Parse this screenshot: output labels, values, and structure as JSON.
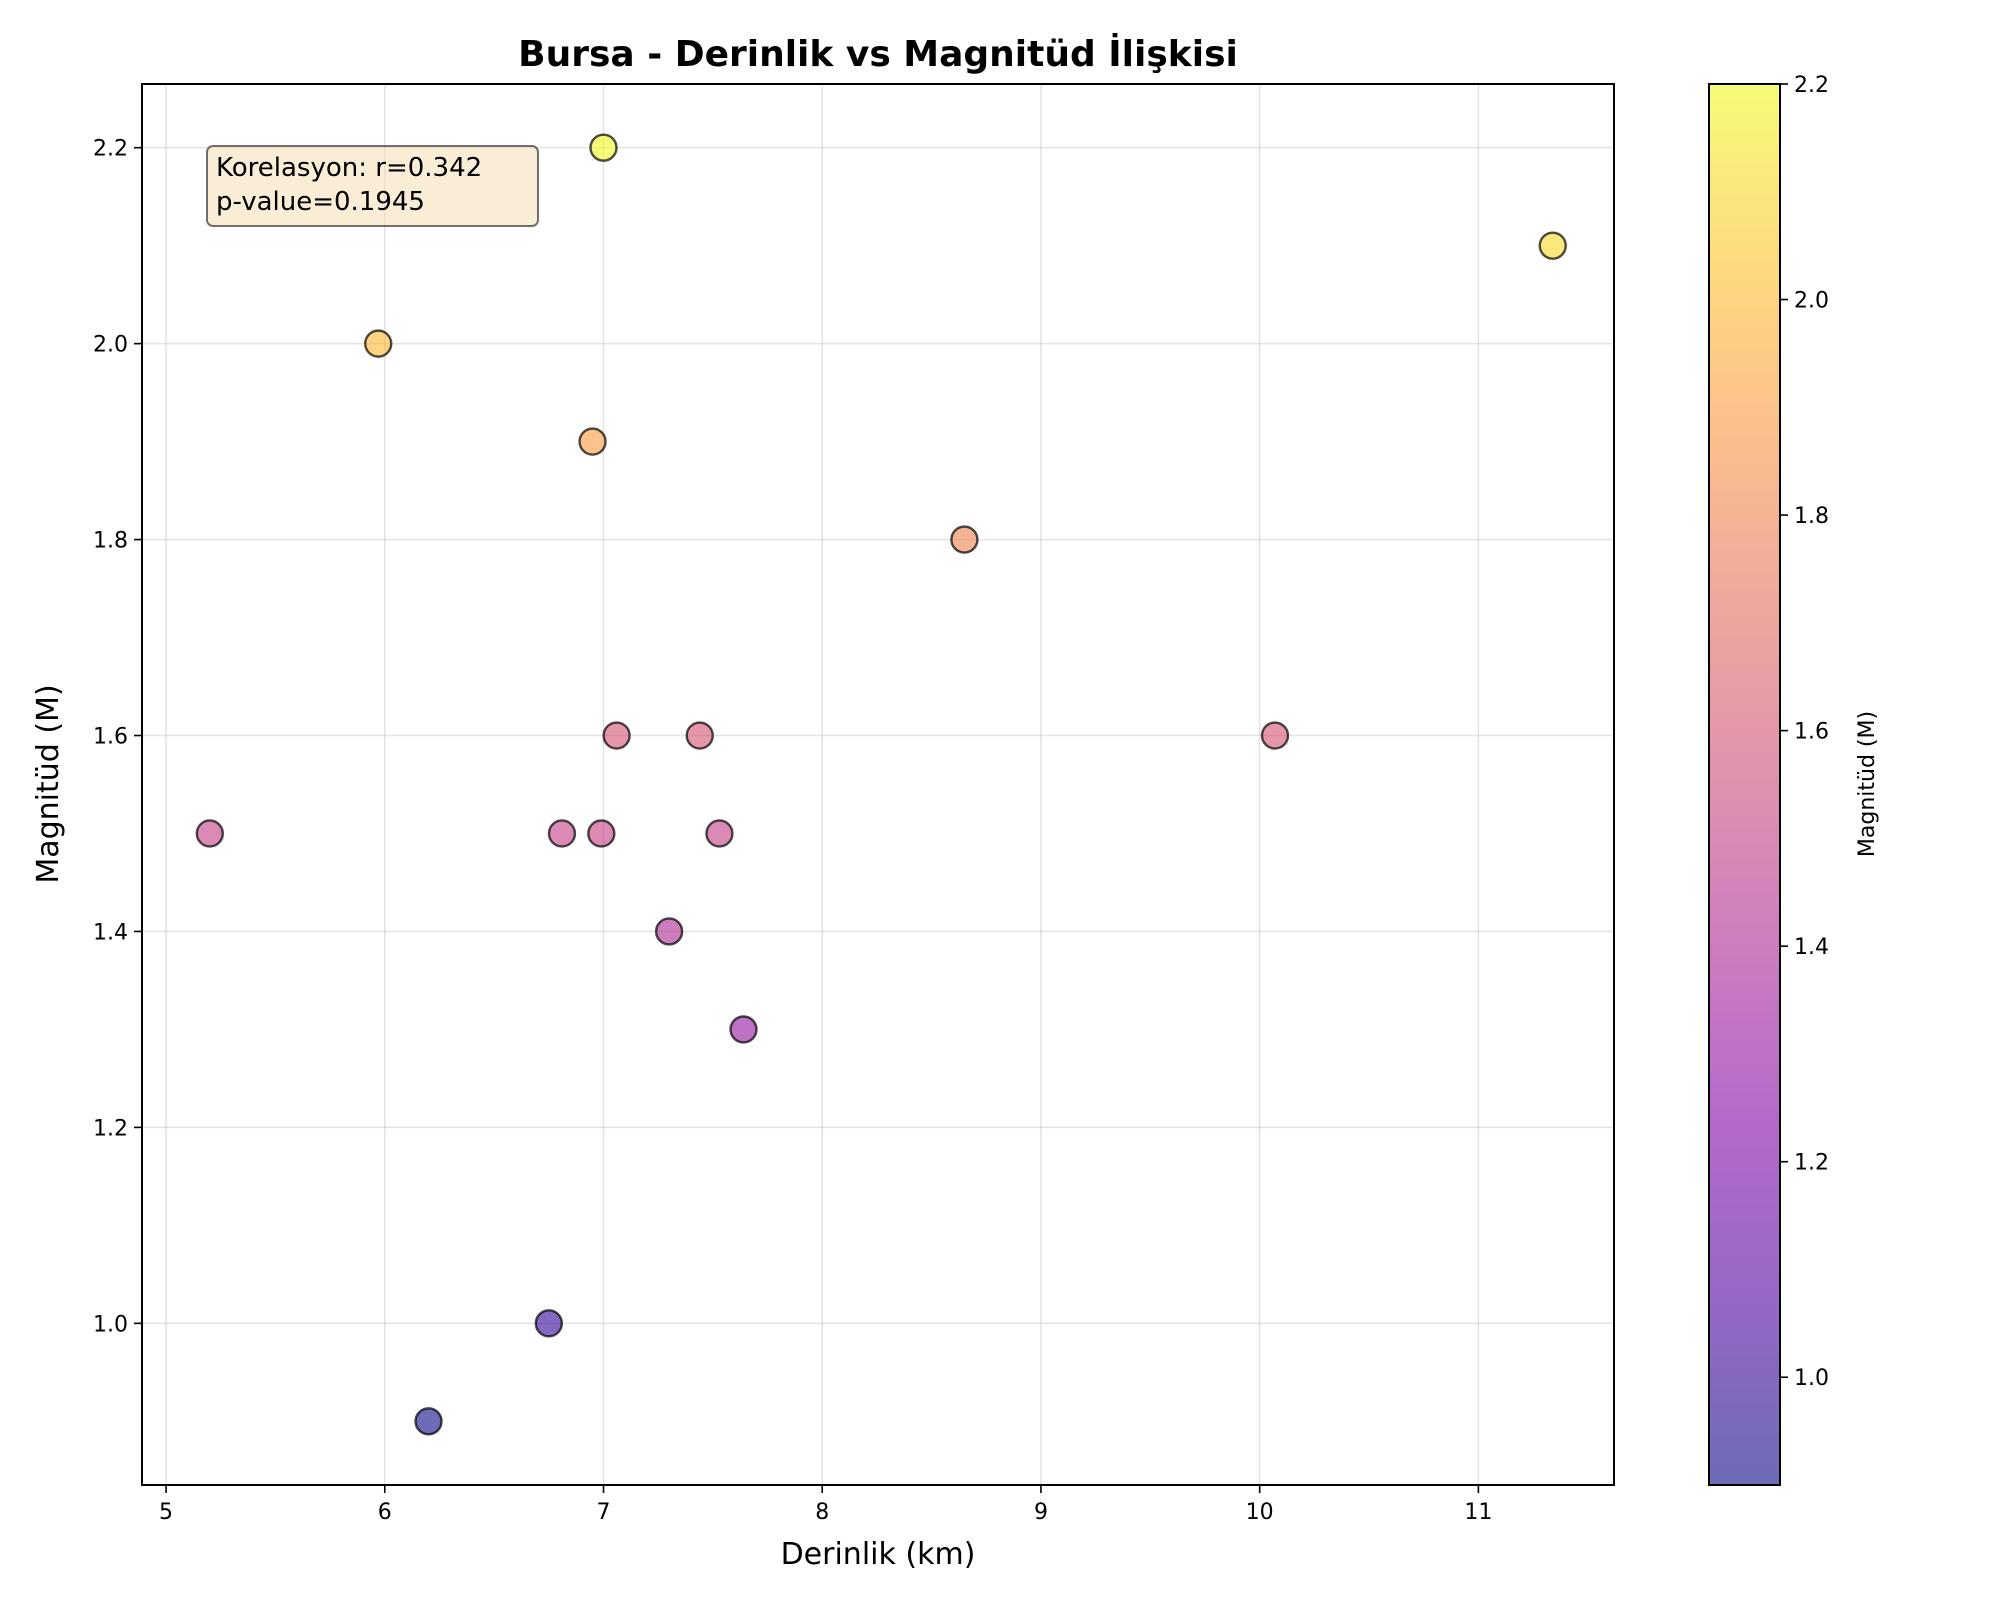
{
  "chart_data": {
    "type": "scatter",
    "title": "Bursa - Derinlik vs Magnitüd İlişkisi",
    "xlabel": "Derinlik (km)",
    "ylabel": "Magnitüd (M)",
    "xlim": [
      4.89,
      11.62
    ],
    "ylim": [
      0.835,
      2.265
    ],
    "xticks": [
      5,
      6,
      7,
      8,
      9,
      10,
      11
    ],
    "yticks": [
      1.0,
      1.2,
      1.4,
      1.6,
      1.8,
      2.0,
      2.2
    ],
    "grid": true,
    "points": [
      {
        "x": 5.2,
        "y": 1.5
      },
      {
        "x": 5.97,
        "y": 2.0
      },
      {
        "x": 6.2,
        "y": 0.9
      },
      {
        "x": 6.75,
        "y": 1.0
      },
      {
        "x": 6.81,
        "y": 1.5
      },
      {
        "x": 6.95,
        "y": 1.9
      },
      {
        "x": 6.99,
        "y": 1.5
      },
      {
        "x": 7.0,
        "y": 2.2
      },
      {
        "x": 7.06,
        "y": 1.6
      },
      {
        "x": 7.3,
        "y": 1.4
      },
      {
        "x": 7.44,
        "y": 1.6
      },
      {
        "x": 7.53,
        "y": 1.5
      },
      {
        "x": 7.64,
        "y": 1.3
      },
      {
        "x": 8.65,
        "y": 1.8
      },
      {
        "x": 10.07,
        "y": 1.6
      },
      {
        "x": 11.34,
        "y": 2.1
      }
    ],
    "colorbar": {
      "label": "Magnitüd (M)",
      "range": [
        0.9,
        2.2
      ],
      "ticks": [
        1.0,
        1.2,
        1.4,
        1.6,
        1.8,
        2.0,
        2.2
      ],
      "colormap": "plasma",
      "alpha": 0.6
    },
    "annotation": {
      "lines": [
        "Korelasyon: r=0.342",
        "p-value=0.1945"
      ],
      "position": "top-left",
      "background": "#f5deb3"
    }
  }
}
